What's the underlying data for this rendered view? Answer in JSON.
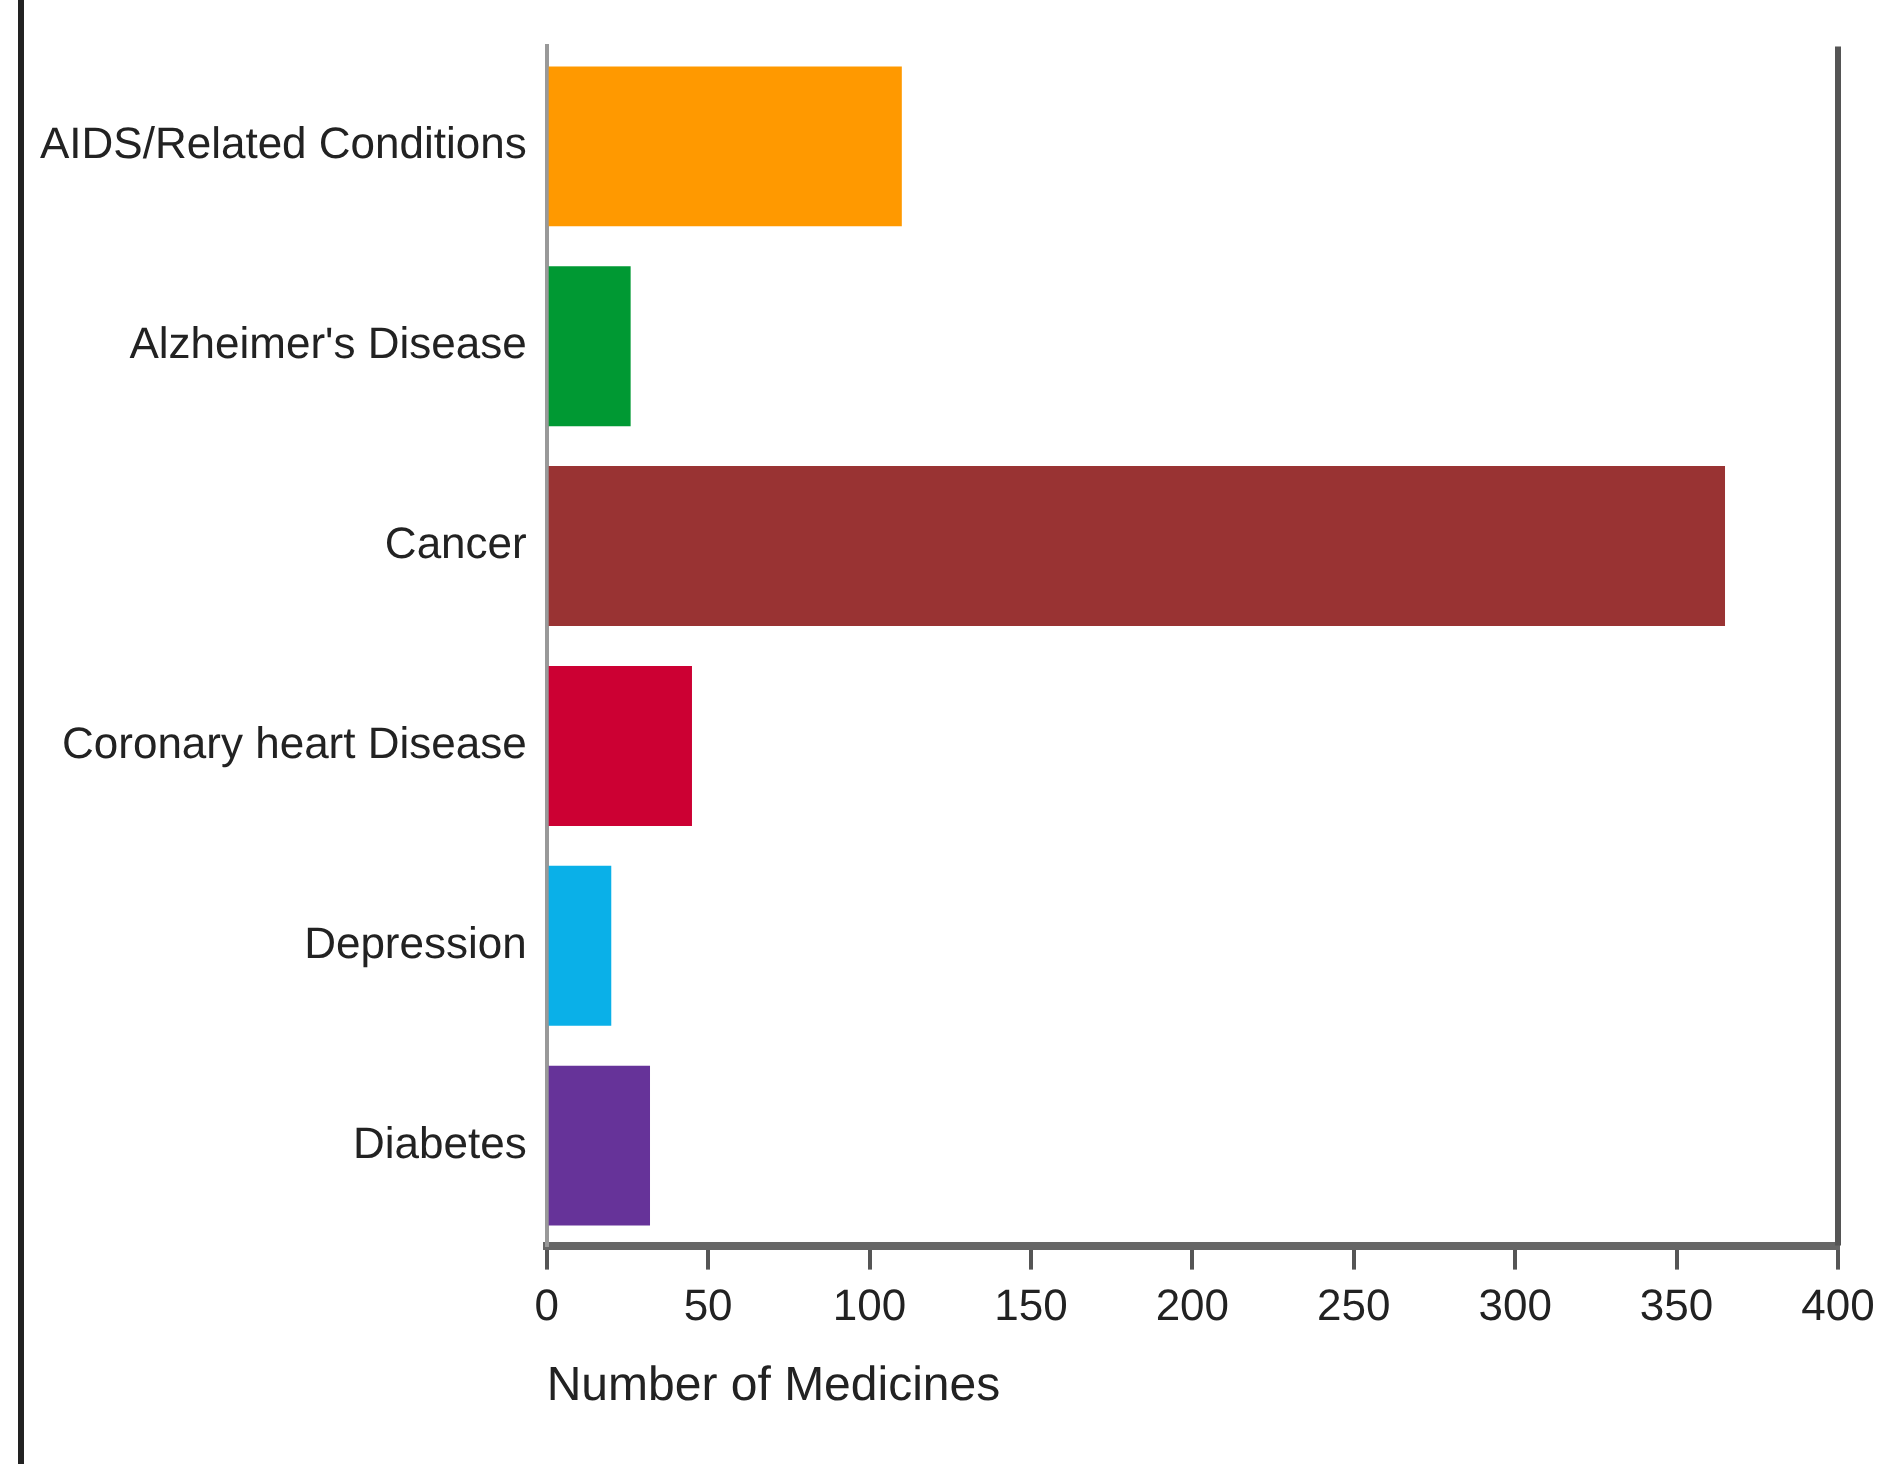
{
  "chart_data": {
    "type": "bar",
    "orientation": "horizontal",
    "xlabel": "Number of Medicines",
    "categories": [
      "AIDS/Related Conditions",
      "Alzheimer's Disease",
      "Cancer",
      "Coronary heart Disease",
      "Depression",
      "Diabetes"
    ],
    "values": [
      110,
      26,
      365,
      45,
      20,
      32
    ],
    "colors": [
      "#ff9900",
      "#009933",
      "#993333",
      "#cc0033",
      "#0ab0e8",
      "#663399"
    ],
    "xlim": [
      0,
      400
    ],
    "xticks": [
      0,
      50,
      100,
      150,
      200,
      250,
      300,
      350,
      400
    ],
    "grid": false,
    "legend": false
  }
}
